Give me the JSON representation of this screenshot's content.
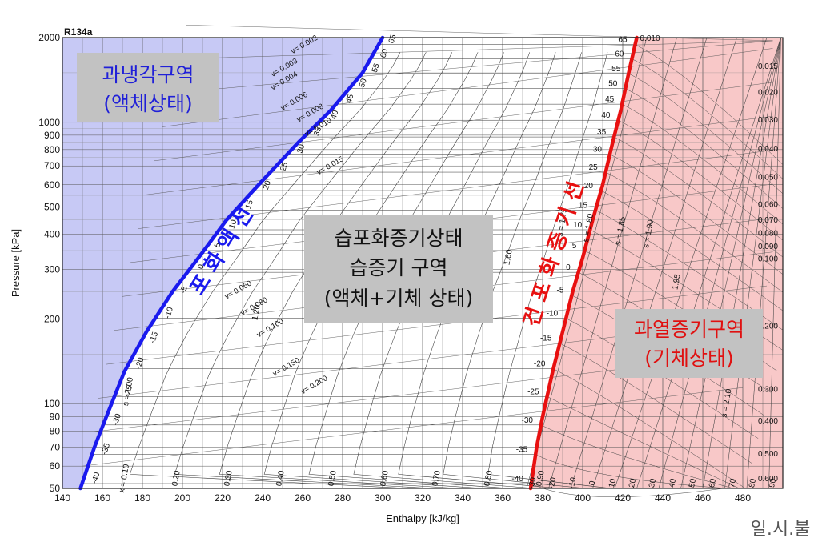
{
  "chart_data": {
    "type": "line",
    "title": "R134a",
    "xlabel": "Enthalpy [kJ/kg]",
    "ylabel": "Pressure [kPa]",
    "xlim": [
      140,
      500
    ],
    "ylim": [
      50,
      2000
    ],
    "y_scale": "log",
    "x_ticks": [
      "140",
      "160",
      "180",
      "200",
      "220",
      "240",
      "260",
      "280",
      "300",
      "320",
      "340",
      "360",
      "380",
      "400",
      "420",
      "440",
      "460",
      "480"
    ],
    "y_ticks": [
      {
        "value": 50,
        "label": "50"
      },
      {
        "value": 60,
        "label": "60"
      },
      {
        "value": 70,
        "label": "70"
      },
      {
        "value": 80,
        "label": "80"
      },
      {
        "value": 90,
        "label": "90"
      },
      {
        "value": 100,
        "label": "100"
      },
      {
        "value": 200,
        "label": "200"
      },
      {
        "value": 300,
        "label": "300"
      },
      {
        "value": 400,
        "label": "400"
      },
      {
        "value": 500,
        "label": "500"
      },
      {
        "value": 600,
        "label": "600"
      },
      {
        "value": 700,
        "label": "700"
      },
      {
        "value": 800,
        "label": "800"
      },
      {
        "value": 900,
        "label": "900"
      },
      {
        "value": 1000,
        "label": "1000"
      },
      {
        "value": 2000,
        "label": "2000"
      }
    ],
    "grid": true,
    "saturated_liquid_line": {
      "label": "포 화 액 선",
      "color": "#1a1aee",
      "points": [
        [
          149,
          50
        ],
        [
          156,
          70
        ],
        [
          162,
          90
        ],
        [
          171,
          130
        ],
        [
          182,
          180
        ],
        [
          195,
          250
        ],
        [
          208,
          330
        ],
        [
          222,
          450
        ],
        [
          238,
          600
        ],
        [
          258,
          850
        ],
        [
          274,
          1100
        ],
        [
          290,
          1500
        ],
        [
          300,
          2000
        ]
      ]
    },
    "saturated_vapor_line": {
      "label": "건 포 화 증 기 선",
      "color": "#e81010",
      "points": [
        [
          374,
          50
        ],
        [
          377,
          70
        ],
        [
          380,
          90
        ],
        [
          385,
          130
        ],
        [
          390,
          180
        ],
        [
          395,
          250
        ],
        [
          400,
          330
        ],
        [
          405,
          450
        ],
        [
          410,
          600
        ],
        [
          415,
          850
        ],
        [
          419,
          1100
        ],
        [
          423,
          1500
        ],
        [
          427,
          2000
        ]
      ]
    },
    "temperature_labels": [
      "-40",
      "-35",
      "-30",
      "-25",
      "-20",
      "-15",
      "-10",
      "-5",
      "0",
      "5",
      "10",
      "15",
      "20",
      "25",
      "30",
      "35",
      "40",
      "45",
      "50",
      "55",
      "60",
      "65"
    ],
    "vapor_side_temperature_labels": [
      "65",
      "60",
      "55",
      "50",
      "45",
      "40",
      "35",
      "30",
      "25",
      "20",
      "15",
      "10",
      "5",
      "0",
      "-5",
      "-10",
      "-15",
      "-20",
      "-25",
      "-30",
      "-35",
      "-40"
    ],
    "superheat_temperature_labels": [
      "-30",
      "-20",
      "-10",
      "0",
      "10",
      "20",
      "30",
      "40",
      "50",
      "60",
      "70",
      "80",
      "90"
    ],
    "specific_volume_labels": [
      "v= 0.002",
      "v= 0.003",
      "v= 0.004",
      "v= 0.006",
      "v= 0.008",
      "v= 0.010",
      "v= 0.015",
      "v= 0.060",
      "v= 0.080",
      "v= 0.100",
      "v= 0.150",
      "v= 0.200"
    ],
    "vapor_region_volume_labels": [
      "0.010",
      "0.015",
      "0.020",
      "0.030",
      "0.040",
      "0.050",
      "0.060",
      "0.070",
      "0.080",
      "0.090",
      "0.100",
      "0.200",
      "0.300",
      "0.400",
      "0.500",
      "0.600"
    ],
    "entropy_labels": [
      "s = 1.00",
      "1.20",
      "1.60",
      "s = 1.75",
      "s = 1.80",
      "s = 1.85",
      "s = 1.90",
      "1.95",
      "s = 2.10"
    ],
    "quality_labels": [
      "x = 0.10",
      "0.20",
      "0.30",
      "0.40",
      "0.50",
      "0.60",
      "0.70",
      "0.80",
      "0.90"
    ],
    "annotations": {
      "subcooled_title": "과냉각구역",
      "subcooled_sub": "(액체상태)",
      "wet_line1": "습포화증기상태",
      "wet_line2": "습증기 구역",
      "wet_line3": "(액체+기체 상태)",
      "superheated_title": "과열증기구역",
      "superheated_sub": "(기체상태)",
      "signature": "일.시.불"
    },
    "colors": {
      "subcooled_fill": "#c7c9f5",
      "superheated_fill": "#f8c8c8",
      "label_box": "#c2c2c2",
      "subcooled_text": "#2020d8",
      "superheated_text": "#e01010"
    }
  }
}
